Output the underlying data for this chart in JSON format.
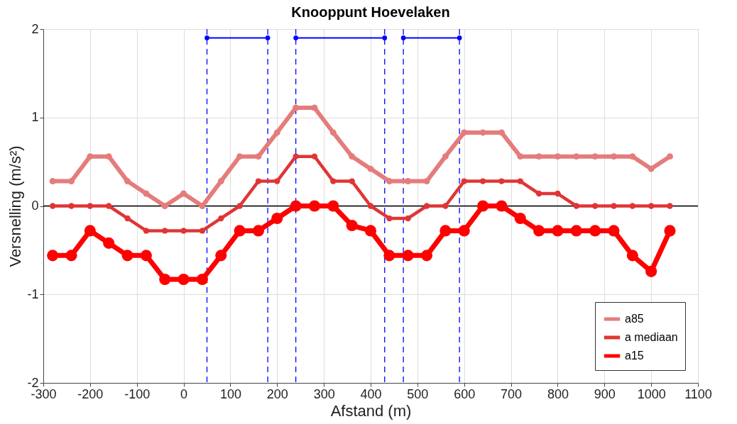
{
  "chart_data": {
    "type": "line",
    "title": "Knooppunt Hoevelaken",
    "xlabel": "Afstand (m)",
    "ylabel": "Versnelling (m/s²)",
    "x": [
      -280,
      -240,
      -200,
      -160,
      -120,
      -80,
      -40,
      0,
      40,
      80,
      120,
      160,
      200,
      240,
      280,
      320,
      360,
      400,
      440,
      480,
      520,
      560,
      600,
      640,
      680,
      720,
      760,
      800,
      840,
      880,
      920,
      960,
      1000,
      1040
    ],
    "series": [
      {
        "name": "a85",
        "color": "#e57c7c",
        "values": [
          0.28,
          0.28,
          0.56,
          0.56,
          0.28,
          0.14,
          0,
          0.14,
          0,
          0.28,
          0.56,
          0.56,
          0.83,
          1.11,
          1.11,
          0.83,
          0.56,
          0.42,
          0.28,
          0.28,
          0.28,
          0.56,
          0.83,
          0.83,
          0.83,
          0.56,
          0.56,
          0.56,
          0.56,
          0.56,
          0.56,
          0.56,
          0.42,
          0.56
        ]
      },
      {
        "name": "a mediaan",
        "color": "#e03535",
        "values": [
          0,
          0,
          0,
          0,
          -0.14,
          -0.28,
          -0.28,
          -0.28,
          -0.28,
          -0.14,
          0,
          0.28,
          0.28,
          0.56,
          0.56,
          0.28,
          0.28,
          0,
          -0.14,
          -0.14,
          0,
          0,
          0.28,
          0.28,
          0.28,
          0.28,
          0.14,
          0.14,
          0,
          0,
          0,
          0,
          0,
          0
        ]
      },
      {
        "name": "a15",
        "color": "#ff0000",
        "values": [
          -0.56,
          -0.56,
          -0.28,
          -0.42,
          -0.56,
          -0.56,
          -0.83,
          -0.83,
          -0.83,
          -0.56,
          -0.28,
          -0.28,
          -0.14,
          0,
          0,
          0,
          -0.22,
          -0.28,
          -0.56,
          -0.56,
          -0.56,
          -0.28,
          -0.28,
          0,
          0,
          -0.14,
          -0.28,
          -0.28,
          -0.28,
          -0.28,
          -0.28,
          -0.56,
          -0.74,
          -0.28
        ]
      },
      {
        "color": "#0000ff",
        "x": [
          50,
          180
        ],
        "values": [
          1.9,
          1.9
        ]
      },
      {
        "color": "#0000ff",
        "x": [
          240,
          430
        ],
        "values": [
          1.9,
          1.9
        ]
      },
      {
        "color": "#0000ff",
        "x": [
          470,
          590
        ],
        "values": [
          1.9,
          1.9
        ]
      }
    ],
    "ref_lines": [
      {
        "axis": "y",
        "value": 0,
        "color": "#000000",
        "line_style": "solid"
      },
      {
        "axis": "x",
        "value": 50,
        "color": "#0000ff",
        "line_style": "dashed"
      },
      {
        "axis": "x",
        "value": 180,
        "color": "#0000ff",
        "line_style": "dashed"
      },
      {
        "axis": "x",
        "value": 240,
        "color": "#0000ff",
        "line_style": "dashed"
      },
      {
        "axis": "x",
        "value": 430,
        "color": "#0000ff",
        "line_style": "dashed"
      },
      {
        "axis": "x",
        "value": 470,
        "color": "#0000ff",
        "line_style": "dashed"
      },
      {
        "axis": "x",
        "value": 590,
        "color": "#0000ff",
        "line_style": "dashed"
      }
    ],
    "xlim": [
      -300,
      1100
    ],
    "xticks": [
      -300,
      -200,
      -100,
      0,
      100,
      200,
      300,
      400,
      500,
      600,
      700,
      800,
      900,
      1000,
      1100
    ],
    "ylim": [
      -2,
      2
    ],
    "yticks": [
      -2,
      -1,
      0,
      1,
      2
    ],
    "grid": true,
    "legend": "bottom right",
    "marker": "circle",
    "line_style": "solid"
  }
}
